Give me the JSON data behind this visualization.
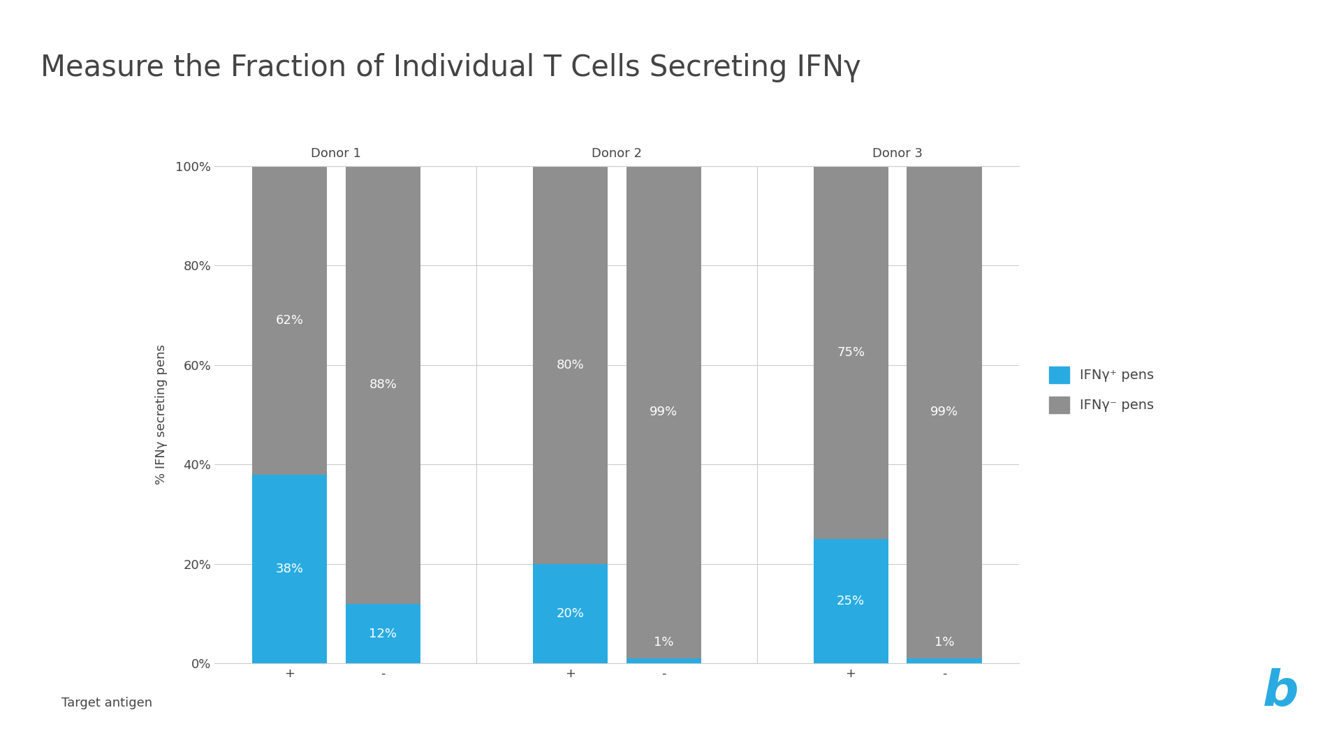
{
  "title": "Measure the Fraction of Individual T Cells Secreting IFNγ",
  "ylabel": "% IFNγ secreting pens",
  "xlabel_label": "Target antigen",
  "donors": [
    "Donor 1",
    "Donor 2",
    "Donor 3"
  ],
  "antigens": [
    "+",
    "-",
    "+",
    "-",
    "+",
    "-"
  ],
  "blue_values": [
    38,
    12,
    20,
    1,
    25,
    1
  ],
  "gray_values": [
    62,
    88,
    80,
    99,
    75,
    99
  ],
  "blue_labels": [
    "38%",
    "12%",
    "20%",
    "1%",
    "25%",
    "1%"
  ],
  "gray_labels": [
    "62%",
    "88%",
    "80%",
    "99%",
    "75%",
    "99%"
  ],
  "blue_color": "#29ABE2",
  "gray_color": "#8F8F8F",
  "background_color": "#FFFFFF",
  "grid_color": "#CCCCCC",
  "title_fontsize": 30,
  "axis_label_fontsize": 13,
  "tick_fontsize": 13,
  "bar_label_fontsize": 13,
  "donor_label_fontsize": 13,
  "legend_fontsize": 14,
  "bar_width": 0.6,
  "ylim": [
    0,
    100
  ],
  "yticks": [
    0,
    20,
    40,
    60,
    80,
    100
  ],
  "ytick_labels": [
    "0%",
    "20%",
    "40%",
    "60%",
    "80%",
    "100%"
  ],
  "legend_labels": [
    "IFNγ⁺ pens",
    "IFNγ⁻ pens"
  ],
  "logo_color": "#29ABE2",
  "title_color": "#444444",
  "text_color": "#444444"
}
